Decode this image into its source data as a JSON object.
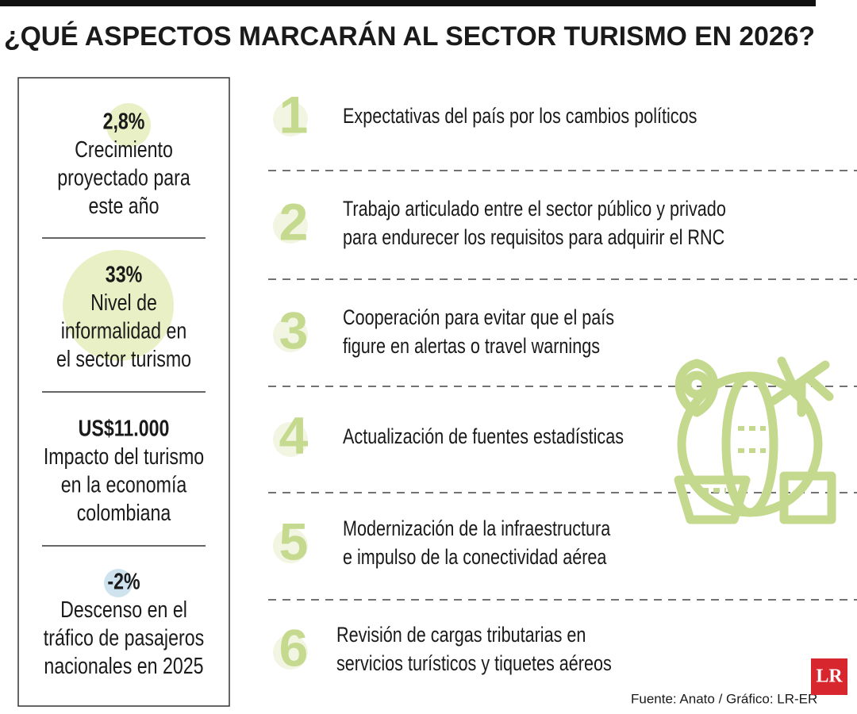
{
  "header": {
    "title": "¿QUÉ ASPECTOS MARCARÁN AL SECTOR TURISMO EN 2026?"
  },
  "stats": [
    {
      "value": "2,8%",
      "lines": [
        "Crecimiento",
        "proyectado para",
        "este año"
      ]
    },
    {
      "value": "33%",
      "lines": [
        "Nivel de",
        "informalidad en",
        "el sector turismo"
      ]
    },
    {
      "value": "US$11.000",
      "lines": [
        "Impacto del turismo",
        "en la economía",
        "colombiana"
      ]
    },
    {
      "value": "-2%",
      "lines": [
        "Descenso en el",
        "tráfico de pasajeros",
        "nacionales en 2025"
      ]
    }
  ],
  "items": [
    {
      "number": "1",
      "lines": [
        "Expectativas del país por los cambios políticos"
      ]
    },
    {
      "number": "2",
      "lines": [
        "Trabajo articulado entre el sector público y privado",
        "para endurecer los requisitos para adquirir el RNC"
      ]
    },
    {
      "number": "3",
      "lines": [
        "Cooperación para evitar que el país",
        "figure en alertas o travel warnings"
      ]
    },
    {
      "number": "4",
      "lines": [
        "Actualización de fuentes estadísticas"
      ]
    },
    {
      "number": "5",
      "lines": [
        "Modernización de la infraestructura",
        "e impulso de la conectividad aérea"
      ]
    },
    {
      "number": "6",
      "lines": [
        "Revisión de cargas tributarias en",
        "servicios turísticos y tiquetes aéreos"
      ]
    }
  ],
  "footer": {
    "source": "Fuente: Anato / Gráfico: LR-ER",
    "logo": "LR"
  }
}
